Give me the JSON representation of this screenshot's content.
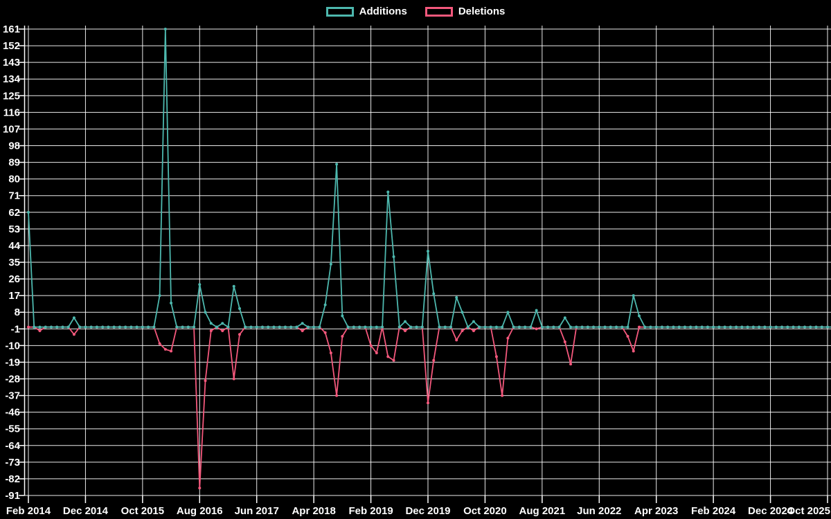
{
  "window": {
    "background": "#000000",
    "text_color": "#ffffff"
  },
  "legend": {
    "items": [
      {
        "label": "Additions",
        "color": "#4db8ae"
      },
      {
        "label": "Deletions",
        "color": "#f4587c"
      }
    ]
  },
  "chart_data": {
    "type": "line",
    "title": "",
    "description": "Monthly code additions (teal) and deletions (pink) over time; flat baseline at 0 with sparse spikes",
    "grid": {
      "show": true,
      "color": "#ffffff",
      "background": "#000000"
    },
    "legend_position": "top-center",
    "x_axis": {
      "start_month": "Feb 2014",
      "end_month": "Oct 2025",
      "months_per_tick": 10,
      "tick_labels": [
        "Feb 2014",
        "Dec 2014",
        "Oct 2015",
        "Aug 2016",
        "Jun 2017",
        "Apr 2018",
        "Feb 2019",
        "Dec 2019",
        "Oct 2020",
        "Aug 2021",
        "Jun 2022",
        "Apr 2023",
        "Feb 2024",
        "Dec 2024",
        "Oct 2025"
      ]
    },
    "y_axis": {
      "max": 161,
      "min": -91,
      "tick_step": 9,
      "tick_labels": [
        161,
        152,
        143,
        134,
        125,
        116,
        107,
        98,
        89,
        80,
        71,
        62,
        53,
        44,
        35,
        26,
        17,
        8,
        -1,
        -10,
        -19,
        -28,
        -37,
        -46,
        -55,
        -64,
        -73,
        -82,
        -91
      ]
    },
    "series": [
      {
        "name": "Additions",
        "color": "#4db8ae",
        "baseline": 0,
        "spikes": [
          [
            "Feb 2014",
            62
          ],
          [
            "Oct 2014",
            5
          ],
          [
            "Jan 2016",
            17
          ],
          [
            "Feb 2016",
            161
          ],
          [
            "Mar 2016",
            13
          ],
          [
            "Aug 2016",
            23
          ],
          [
            "Sep 2016",
            8
          ],
          [
            "Oct 2016",
            2
          ],
          [
            "Dec 2016",
            2
          ],
          [
            "Feb 2017",
            22
          ],
          [
            "Mar 2017",
            10
          ],
          [
            "Feb 2018",
            2
          ],
          [
            "Jun 2018",
            12
          ],
          [
            "Jul 2018",
            34
          ],
          [
            "Aug 2018",
            88
          ],
          [
            "Sep 2018",
            6
          ],
          [
            "May 2019",
            73
          ],
          [
            "Jun 2019",
            38
          ],
          [
            "Aug 2019",
            3
          ],
          [
            "Dec 2019",
            41
          ],
          [
            "Jan 2020",
            18
          ],
          [
            "May 2020",
            16
          ],
          [
            "Jun 2020",
            8
          ],
          [
            "Aug 2020",
            3
          ],
          [
            "Feb 2021",
            8
          ],
          [
            "Jul 2021",
            9
          ],
          [
            "Dec 2021",
            5
          ],
          [
            "Dec 2022",
            17
          ],
          [
            "Jan 2023",
            6
          ]
        ]
      },
      {
        "name": "Deletions",
        "color": "#f4587c",
        "baseline": 0,
        "spikes": [
          [
            "Apr 2014",
            -2
          ],
          [
            "Oct 2014",
            -4
          ],
          [
            "Jan 2016",
            -9
          ],
          [
            "Feb 2016",
            -12
          ],
          [
            "Mar 2016",
            -13
          ],
          [
            "Aug 2016",
            -87
          ],
          [
            "Sep 2016",
            -29
          ],
          [
            "Oct 2016",
            -2
          ],
          [
            "Dec 2016",
            -2
          ],
          [
            "Feb 2017",
            -28
          ],
          [
            "Mar 2017",
            -4
          ],
          [
            "Feb 2018",
            -2
          ],
          [
            "Jun 2018",
            -3
          ],
          [
            "Jul 2018",
            -14
          ],
          [
            "Aug 2018",
            -37
          ],
          [
            "Sep 2018",
            -5
          ],
          [
            "Feb 2019",
            -10
          ],
          [
            "Mar 2019",
            -14
          ],
          [
            "May 2019",
            -16
          ],
          [
            "Jun 2019",
            -18
          ],
          [
            "Aug 2019",
            -2
          ],
          [
            "Dec 2019",
            -41
          ],
          [
            "Jan 2020",
            -18
          ],
          [
            "May 2020",
            -7
          ],
          [
            "Jun 2020",
            -2
          ],
          [
            "Aug 2020",
            -2
          ],
          [
            "Dec 2020",
            -16
          ],
          [
            "Jan 2021",
            -37
          ],
          [
            "Feb 2021",
            -6
          ],
          [
            "Jul 2021",
            -1
          ],
          [
            "Dec 2021",
            -8
          ],
          [
            "Jan 2022",
            -20
          ],
          [
            "Nov 2022",
            -5
          ],
          [
            "Dec 2022",
            -13
          ]
        ]
      }
    ]
  }
}
